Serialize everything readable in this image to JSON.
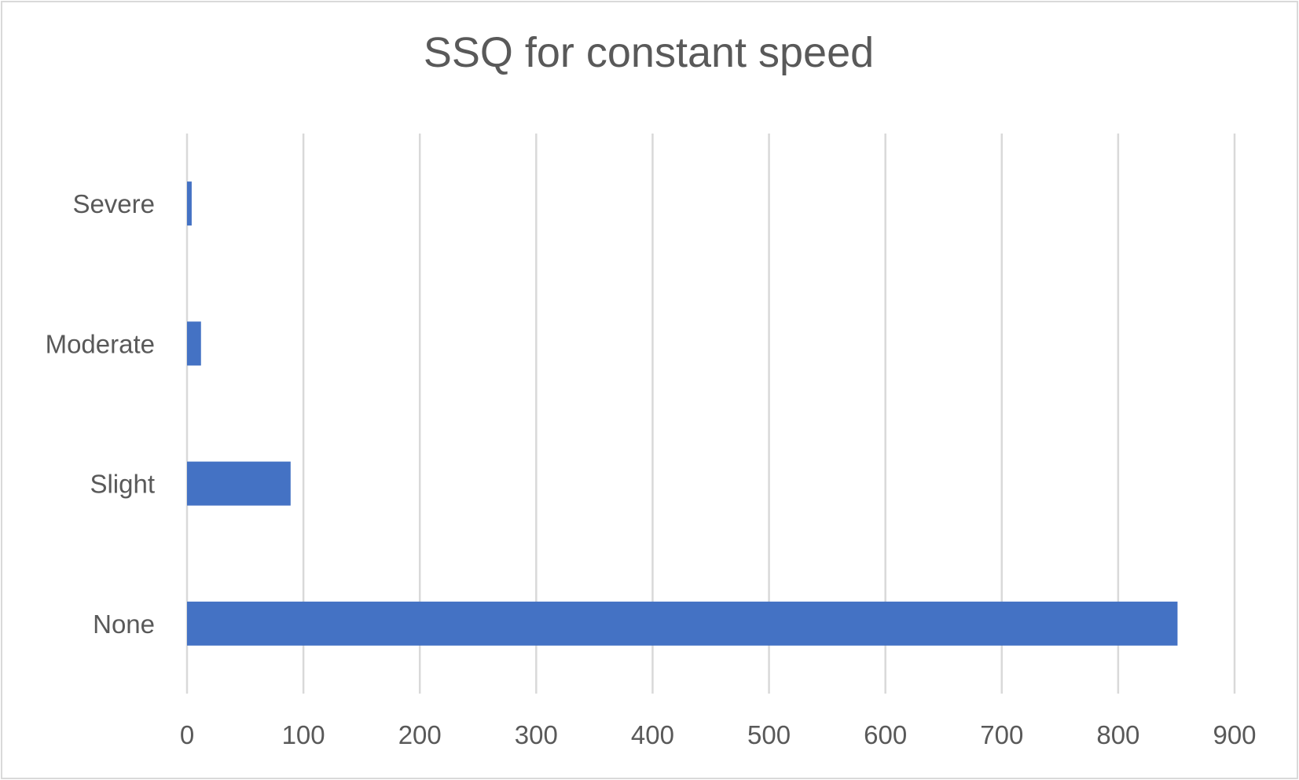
{
  "chart_data": {
    "type": "bar",
    "orientation": "horizontal",
    "title": "SSQ for constant speed",
    "categories": [
      "Severe",
      "Moderate",
      "Slight",
      "None"
    ],
    "values": [
      4,
      12,
      89,
      851
    ],
    "xlabel": "",
    "ylabel": "",
    "xlim": [
      0,
      900
    ],
    "x_ticks": [
      0,
      100,
      200,
      300,
      400,
      500,
      600,
      700,
      800,
      900
    ],
    "grid": "vertical",
    "legend": "none",
    "bar_color": "#4472C4",
    "grid_color": "#d9d9d9",
    "text_color": "#595959"
  }
}
